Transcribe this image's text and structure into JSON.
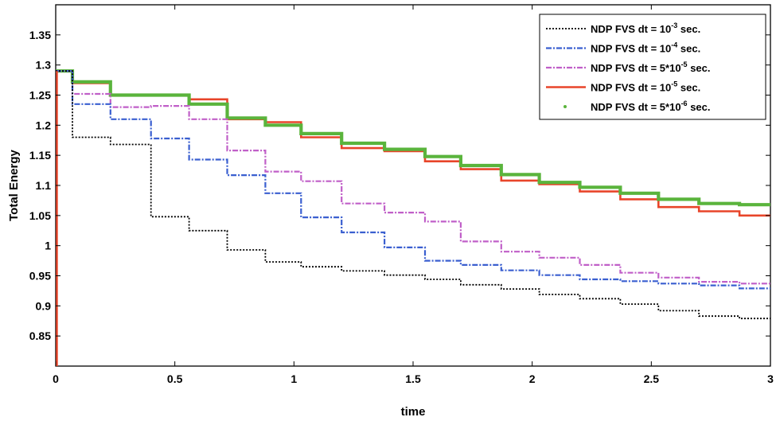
{
  "chart_data": {
    "type": "line",
    "title": "",
    "xlabel": "time",
    "ylabel": "Total Energy",
    "xlim": [
      0,
      3
    ],
    "ylim": [
      0.8,
      1.4
    ],
    "xticks": [
      0,
      0.5,
      1,
      1.5,
      2,
      2.5,
      3
    ],
    "xtick_labels": [
      "0",
      "0.5",
      "1",
      "1.5",
      "2",
      "2.5",
      "3"
    ],
    "yticks": [
      0.85,
      0.9,
      0.95,
      1,
      1.05,
      1.1,
      1.15,
      1.2,
      1.25,
      1.3,
      1.35
    ],
    "ytick_labels": [
      "0.85",
      "0.9",
      "0.95",
      "1",
      "1.05",
      "1.1",
      "1.15",
      "1.2",
      "1.25",
      "1.3",
      "1.35"
    ],
    "grid": false,
    "legend_position": "top-right",
    "series": [
      {
        "name": "NDP FVS dt = 10^-3 sec.",
        "legend": {
          "prefix": "NDP FVS dt = 10",
          "sup": "-3",
          "suffix": " sec."
        },
        "color": "#000000",
        "style": "dotted",
        "step": true,
        "x": [
          0,
          0.07,
          0.07,
          0.23,
          0.23,
          0.4,
          0.4,
          0.56,
          0.56,
          0.72,
          0.72,
          0.88,
          0.88,
          1.03,
          1.03,
          1.2,
          1.2,
          1.38,
          1.38,
          1.55,
          1.55,
          1.7,
          1.7,
          1.87,
          1.87,
          2.03,
          2.03,
          2.2,
          2.2,
          2.37,
          2.37,
          2.53,
          2.53,
          2.7,
          2.7,
          2.87,
          2.87,
          3.0
        ],
        "y": [
          1.29,
          1.29,
          1.18,
          1.18,
          1.168,
          1.168,
          1.048,
          1.048,
          1.025,
          1.025,
          0.993,
          0.993,
          0.973,
          0.973,
          0.965,
          0.965,
          0.958,
          0.958,
          0.951,
          0.951,
          0.944,
          0.944,
          0.935,
          0.935,
          0.928,
          0.928,
          0.919,
          0.919,
          0.912,
          0.912,
          0.903,
          0.903,
          0.892,
          0.892,
          0.883,
          0.883,
          0.879,
          0.879
        ]
      },
      {
        "name": "NDP FVS dt = 10^-4 sec.",
        "legend": {
          "prefix": "NDP FVS dt = 10",
          "sup": "-4",
          "suffix": " sec."
        },
        "color": "#3a5fd0",
        "style": "dashdot",
        "step": true,
        "x": [
          0,
          0.07,
          0.07,
          0.23,
          0.23,
          0.4,
          0.4,
          0.56,
          0.56,
          0.72,
          0.72,
          0.88,
          0.88,
          1.03,
          1.03,
          1.2,
          1.2,
          1.38,
          1.38,
          1.55,
          1.55,
          1.7,
          1.7,
          1.87,
          1.87,
          2.03,
          2.03,
          2.2,
          2.2,
          2.37,
          2.37,
          2.53,
          2.53,
          2.7,
          2.7,
          2.87,
          2.87,
          3.0
        ],
        "y": [
          1.29,
          1.29,
          1.235,
          1.235,
          1.21,
          1.21,
          1.178,
          1.178,
          1.143,
          1.143,
          1.117,
          1.117,
          1.087,
          1.087,
          1.047,
          1.047,
          1.022,
          1.022,
          0.997,
          0.997,
          0.975,
          0.975,
          0.968,
          0.968,
          0.959,
          0.959,
          0.951,
          0.951,
          0.944,
          0.944,
          0.941,
          0.941,
          0.937,
          0.937,
          0.934,
          0.934,
          0.929,
          0.929
        ]
      },
      {
        "name": "NDP FVS dt = 5*10^-5 sec.",
        "legend": {
          "prefix": "NDP FVS dt = 5*10",
          "sup": "-5",
          "suffix": " sec."
        },
        "color": "#c05fc8",
        "style": "dashdot",
        "step": true,
        "x": [
          0,
          0.07,
          0.07,
          0.23,
          0.23,
          0.4,
          0.4,
          0.56,
          0.56,
          0.72,
          0.72,
          0.88,
          0.88,
          1.03,
          1.03,
          1.2,
          1.2,
          1.38,
          1.38,
          1.55,
          1.55,
          1.7,
          1.7,
          1.87,
          1.87,
          2.03,
          2.03,
          2.2,
          2.2,
          2.37,
          2.37,
          2.53,
          2.53,
          2.7,
          2.7,
          2.87,
          2.87,
          3.0
        ],
        "y": [
          1.29,
          1.29,
          1.252,
          1.252,
          1.23,
          1.23,
          1.232,
          1.232,
          1.21,
          1.21,
          1.158,
          1.158,
          1.123,
          1.123,
          1.107,
          1.107,
          1.07,
          1.07,
          1.055,
          1.055,
          1.04,
          1.04,
          1.007,
          1.007,
          0.99,
          0.99,
          0.98,
          0.98,
          0.968,
          0.968,
          0.955,
          0.955,
          0.947,
          0.947,
          0.94,
          0.94,
          0.937,
          0.937
        ]
      },
      {
        "name": "NDP FVS dt = 10^-5 sec.",
        "legend": {
          "prefix": "NDP FVS dt = 10",
          "sup": "-5",
          "suffix": " sec."
        },
        "color": "#e8452a",
        "style": "solid",
        "step": true,
        "x": [
          0,
          0.07,
          0.07,
          0.23,
          0.23,
          0.56,
          0.56,
          0.72,
          0.72,
          0.88,
          0.88,
          1.03,
          1.03,
          1.2,
          1.2,
          1.38,
          1.38,
          1.55,
          1.55,
          1.7,
          1.7,
          1.87,
          1.87,
          2.03,
          2.03,
          2.2,
          2.2,
          2.37,
          2.37,
          2.53,
          2.53,
          2.7,
          2.7,
          2.87,
          2.87,
          3.0
        ],
        "y": [
          1.29,
          1.29,
          1.27,
          1.27,
          1.25,
          1.25,
          1.243,
          1.243,
          1.21,
          1.21,
          1.205,
          1.205,
          1.18,
          1.18,
          1.162,
          1.162,
          1.157,
          1.157,
          1.14,
          1.14,
          1.127,
          1.127,
          1.108,
          1.108,
          1.102,
          1.102,
          1.09,
          1.09,
          1.077,
          1.077,
          1.064,
          1.064,
          1.057,
          1.057,
          1.05,
          1.05
        ]
      },
      {
        "name": "NDP FVS dt = 5*10^-6 sec.",
        "legend": {
          "prefix": "NDP FVS dt = 5*10",
          "sup": "-6",
          "suffix": " sec."
        },
        "color": "#5ab43c",
        "style": "dots",
        "step": true,
        "x": [
          0,
          0.07,
          0.07,
          0.23,
          0.23,
          0.56,
          0.56,
          0.72,
          0.72,
          0.88,
          0.88,
          1.03,
          1.03,
          1.2,
          1.2,
          1.38,
          1.38,
          1.55,
          1.55,
          1.7,
          1.7,
          1.87,
          1.87,
          2.03,
          2.03,
          2.2,
          2.2,
          2.37,
          2.37,
          2.53,
          2.53,
          2.7,
          2.7,
          2.87,
          2.87,
          3.0
        ],
        "y": [
          1.29,
          1.29,
          1.272,
          1.272,
          1.25,
          1.25,
          1.235,
          1.235,
          1.212,
          1.212,
          1.2,
          1.2,
          1.186,
          1.186,
          1.17,
          1.17,
          1.16,
          1.16,
          1.148,
          1.148,
          1.133,
          1.133,
          1.118,
          1.118,
          1.105,
          1.105,
          1.097,
          1.097,
          1.087,
          1.087,
          1.077,
          1.077,
          1.07,
          1.07,
          1.068,
          1.068
        ]
      }
    ]
  }
}
